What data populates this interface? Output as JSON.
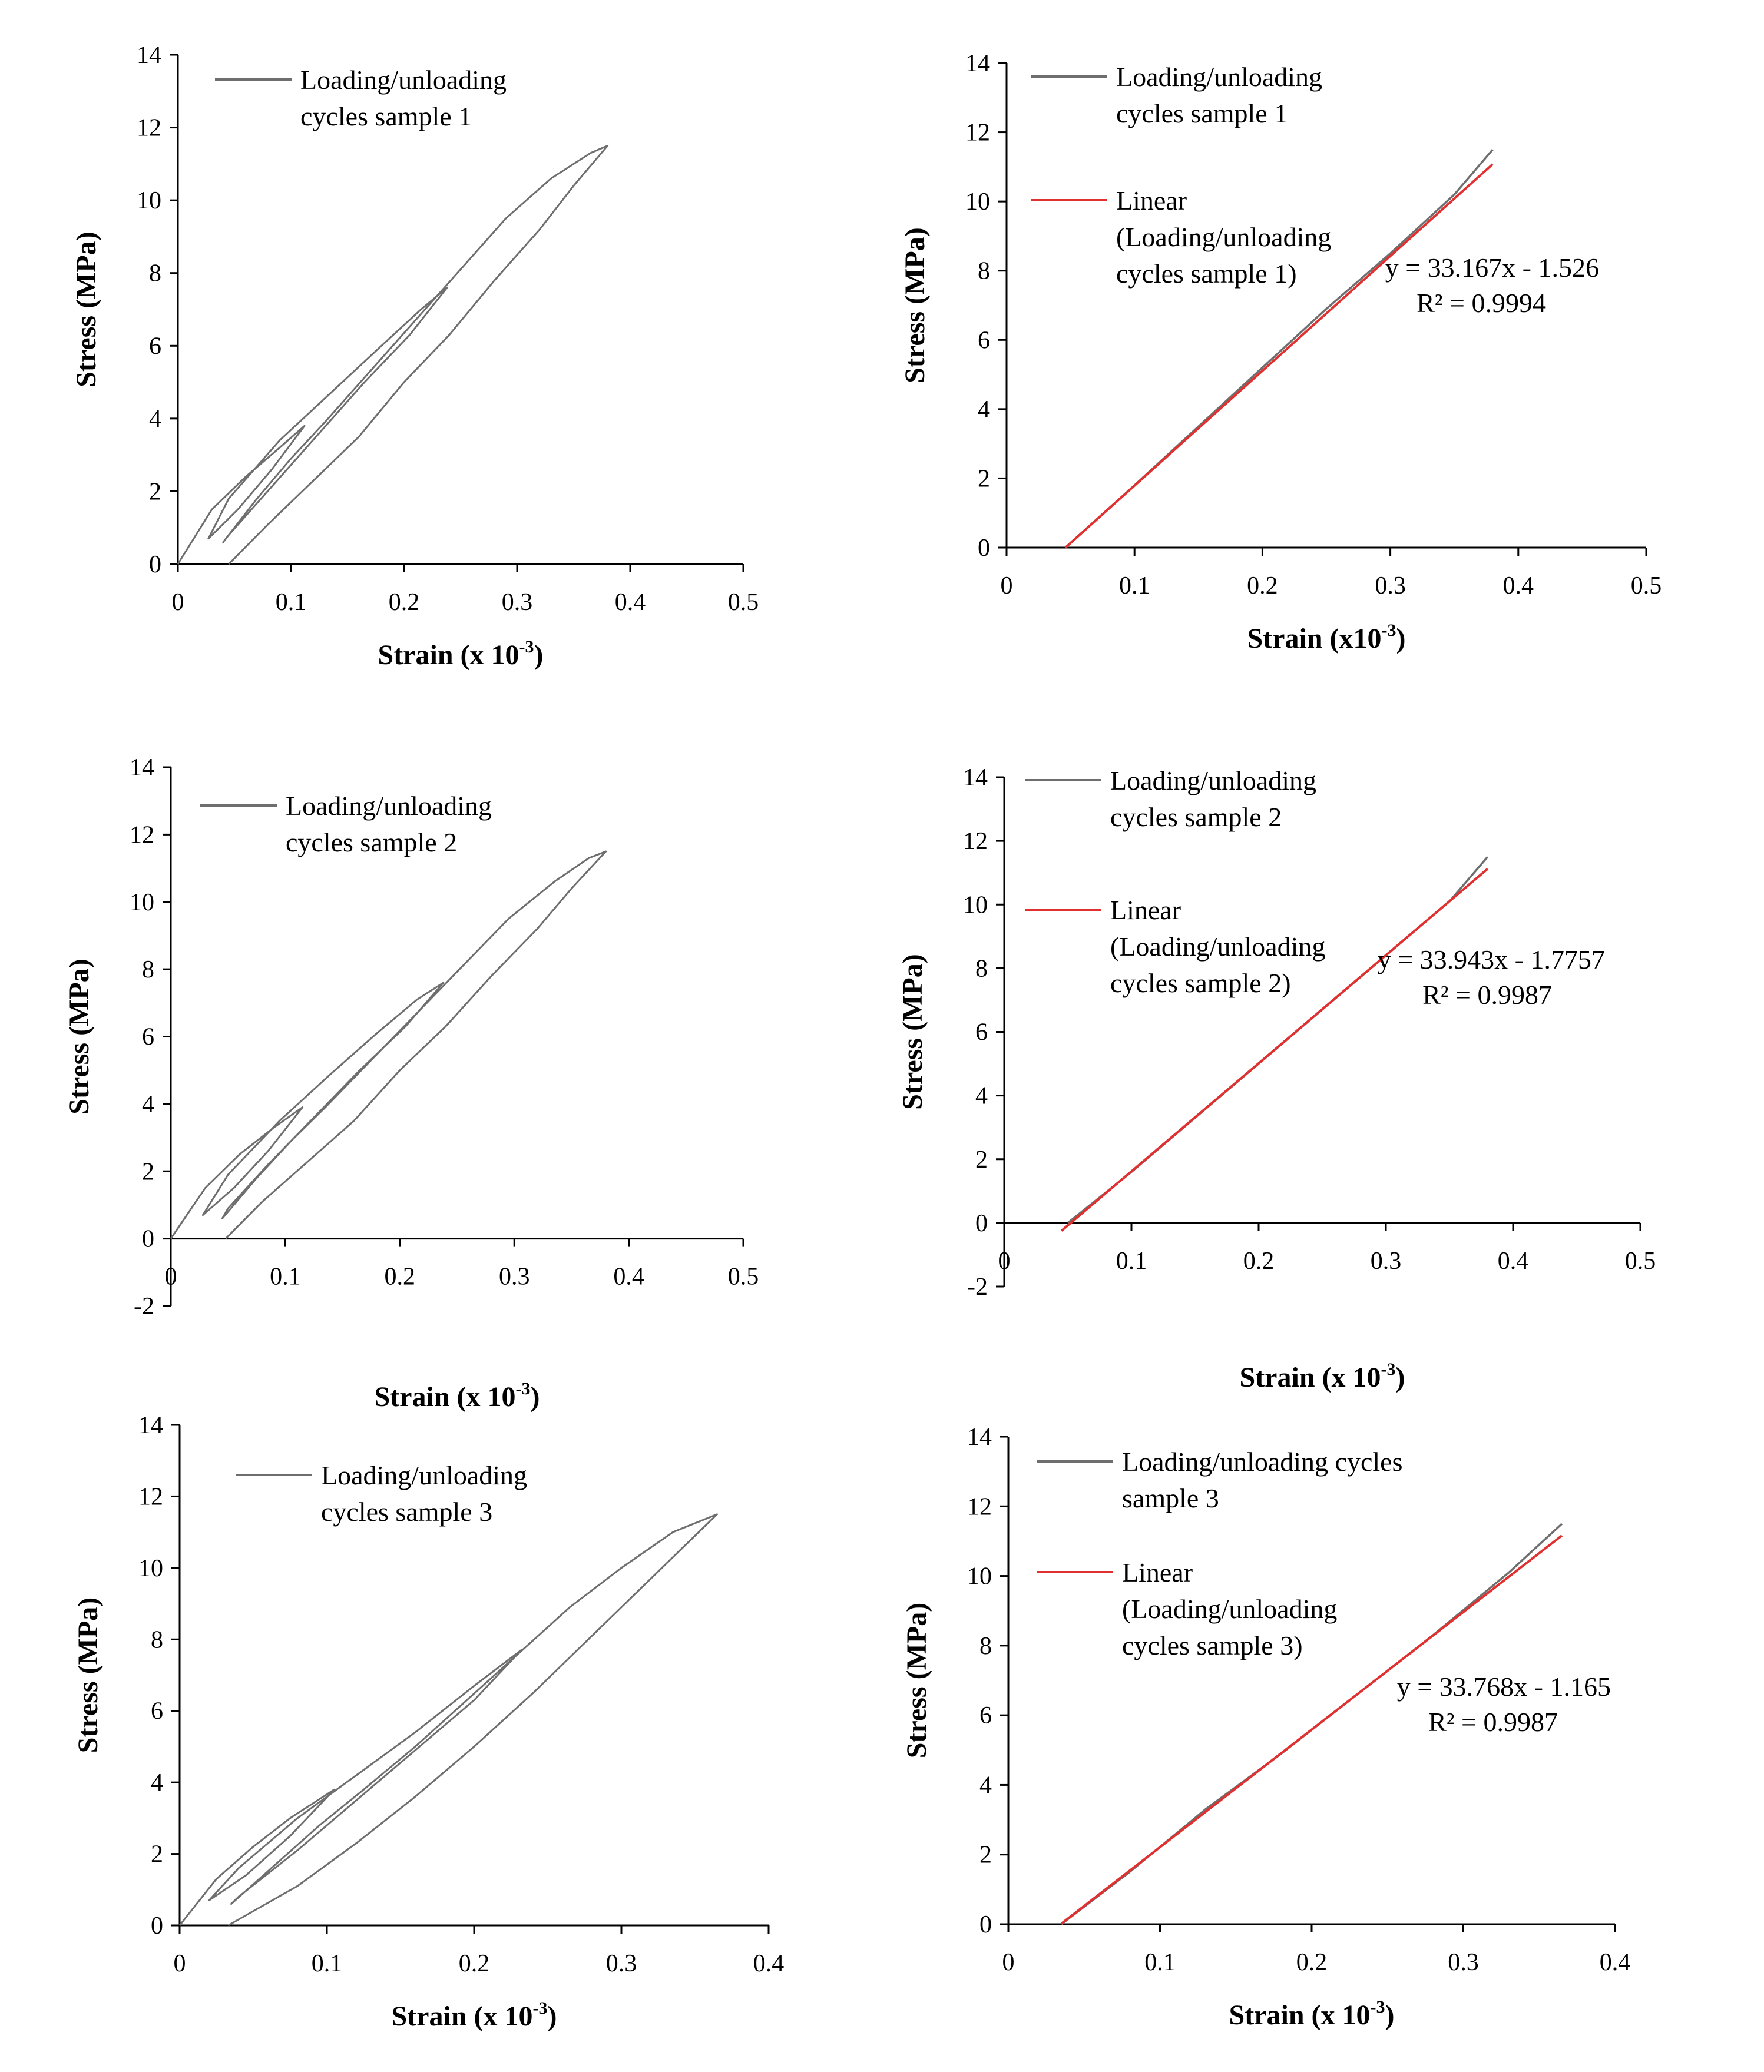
{
  "figure": {
    "panel_count": 6
  },
  "colors": {
    "data_line": "#6e6e6e",
    "fit_line": "#e03030",
    "axis": "#000000"
  },
  "chart_data": [
    {
      "id": "p1",
      "type": "line",
      "xlabel": "Strain (x 10",
      "xlabel_sup": "-3",
      "xlabel_end": ")",
      "ylabel": "Stress  (MPa)",
      "xlim": [
        0,
        0.5
      ],
      "ylim": [
        0,
        14
      ],
      "xticks": [
        0,
        0.1,
        0.2,
        0.3,
        0.4,
        0.5
      ],
      "yticks": [
        0,
        2,
        4,
        6,
        8,
        10,
        12,
        14
      ],
      "legend": [
        "Loading/unloading",
        "cycles sample 1"
      ],
      "series": [
        {
          "name": "Loading/unloading cycles sample 1",
          "kind": "cycles",
          "x": [
            0.0,
            0.03,
            0.06,
            0.09,
            0.112,
            0.083,
            0.053,
            0.027,
            0.045,
            0.09,
            0.135,
            0.18,
            0.215,
            0.238,
            0.205,
            0.165,
            0.125,
            0.085,
            0.045,
            0.04,
            0.07,
            0.1,
            0.13,
            0.17,
            0.21,
            0.25,
            0.29,
            0.33,
            0.365,
            0.38,
            0.35,
            0.32,
            0.28,
            0.24,
            0.2,
            0.16,
            0.12,
            0.08,
            0.045
          ],
          "y": [
            0.0,
            1.5,
            2.4,
            3.2,
            3.8,
            2.6,
            1.5,
            0.7,
            1.8,
            3.4,
            4.7,
            6.0,
            7.0,
            7.6,
            6.3,
            5.0,
            3.6,
            2.2,
            0.8,
            0.6,
            1.8,
            2.9,
            3.9,
            5.3,
            6.7,
            8.1,
            9.5,
            10.6,
            11.3,
            11.5,
            10.4,
            9.2,
            7.8,
            6.3,
            5.0,
            3.5,
            2.3,
            1.1,
            0.0
          ]
        }
      ]
    },
    {
      "id": "p2",
      "type": "line",
      "xlabel": "Strain (x10",
      "xlabel_sup": "-3",
      "xlabel_end": ")",
      "ylabel": "Stress  (MPa)",
      "xlim": [
        0,
        0.5
      ],
      "ylim": [
        0,
        14
      ],
      "xticks": [
        0,
        0.1,
        0.2,
        0.3,
        0.4,
        0.5
      ],
      "yticks": [
        0,
        2,
        4,
        6,
        8,
        10,
        12,
        14
      ],
      "legend": [
        "Loading/unloading",
        "cycles sample 1"
      ],
      "legend_fit": [
        "Linear",
        "(Loading/unloading",
        "cycles sample 1)"
      ],
      "equation": "y = 33.167x - 1.526",
      "r2": "R² = 0.9994",
      "series": [
        {
          "name": "Loading/unloading cycles sample 1",
          "kind": "data",
          "x": [
            0.046,
            0.1,
            0.15,
            0.2,
            0.25,
            0.3,
            0.35,
            0.38
          ],
          "y": [
            0.0,
            1.8,
            3.5,
            5.2,
            6.9,
            8.5,
            10.2,
            11.5
          ]
        },
        {
          "name": "Linear (Loading/unloading cycles sample 1)",
          "kind": "fit",
          "slope": 33.167,
          "intercept": -1.526,
          "x_range": [
            0.046,
            0.38
          ]
        }
      ]
    },
    {
      "id": "p3",
      "type": "line",
      "xlabel": "Strain (x 10",
      "xlabel_sup": "-3",
      "xlabel_end": ")",
      "ylabel": "Stress (MPa)",
      "xlim": [
        0,
        0.5
      ],
      "ylim": [
        -2,
        14
      ],
      "xticks": [
        0,
        0.1,
        0.2,
        0.3,
        0.4,
        0.5
      ],
      "yticks": [
        -2,
        0,
        2,
        4,
        6,
        8,
        10,
        12,
        14
      ],
      "legend": [
        "Loading/unloading",
        "cycles sample 2"
      ],
      "series": [
        {
          "name": "Loading/unloading cycles sample 2",
          "kind": "cycles",
          "x": [
            0.0,
            0.03,
            0.06,
            0.09,
            0.115,
            0.085,
            0.055,
            0.028,
            0.05,
            0.095,
            0.14,
            0.18,
            0.215,
            0.238,
            0.205,
            0.165,
            0.125,
            0.085,
            0.05,
            0.045,
            0.075,
            0.105,
            0.135,
            0.175,
            0.215,
            0.255,
            0.295,
            0.335,
            0.365,
            0.38,
            0.35,
            0.32,
            0.28,
            0.24,
            0.2,
            0.16,
            0.12,
            0.08,
            0.048
          ],
          "y": [
            0.0,
            1.5,
            2.5,
            3.3,
            3.9,
            2.6,
            1.5,
            0.7,
            1.9,
            3.5,
            4.9,
            6.1,
            7.1,
            7.6,
            6.3,
            5.0,
            3.6,
            2.2,
            0.9,
            0.6,
            1.8,
            2.9,
            3.9,
            5.3,
            6.7,
            8.1,
            9.5,
            10.6,
            11.3,
            11.5,
            10.4,
            9.2,
            7.8,
            6.3,
            5.0,
            3.5,
            2.3,
            1.1,
            0.0
          ]
        }
      ]
    },
    {
      "id": "p4",
      "type": "line",
      "xlabel": "Strain (x 10",
      "xlabel_sup": "-3",
      "xlabel_end": ")",
      "ylabel": "Stress  (MPa)",
      "xlim": [
        0,
        0.5
      ],
      "ylim": [
        -2,
        14
      ],
      "xticks": [
        0,
        0.1,
        0.2,
        0.3,
        0.4,
        0.5
      ],
      "yticks": [
        -2,
        0,
        2,
        4,
        6,
        8,
        10,
        12,
        14
      ],
      "legend": [
        "Loading/unloading",
        "cycles sample 2"
      ],
      "legend_fit": [
        "Linear",
        "(Loading/unloading",
        "cycles sample 2)"
      ],
      "equation": "y = 33.943x - 1.7757",
      "r2": "R² = 0.9987",
      "series": [
        {
          "name": "Loading/unloading cycles sample 2",
          "kind": "data",
          "x": [
            0.05,
            0.1,
            0.15,
            0.2,
            0.25,
            0.3,
            0.35,
            0.38
          ],
          "y": [
            0.0,
            1.6,
            3.3,
            5.0,
            6.7,
            8.4,
            10.1,
            11.5
          ]
        },
        {
          "name": "Linear (Loading/unloading cycles sample 2)",
          "kind": "fit",
          "slope": 33.943,
          "intercept": -1.7757,
          "x_range": [
            0.045,
            0.38
          ]
        }
      ]
    },
    {
      "id": "p5",
      "type": "line",
      "xlabel": "Strain (x 10",
      "xlabel_sup": "-3",
      "xlabel_end": ")",
      "ylabel": "Stress (MPa)",
      "xlim": [
        0,
        0.4
      ],
      "ylim": [
        0,
        14
      ],
      "xticks": [
        0,
        0.1,
        0.2,
        0.3,
        0.4
      ],
      "yticks": [
        0,
        2,
        4,
        6,
        8,
        10,
        12,
        14
      ],
      "legend": [
        "Loading/unloading",
        "cycles sample 3"
      ],
      "series": [
        {
          "name": "Loading/unloading cycles sample 3",
          "kind": "cycles",
          "x": [
            0.0,
            0.025,
            0.05,
            0.075,
            0.105,
            0.075,
            0.045,
            0.02,
            0.04,
            0.08,
            0.12,
            0.16,
            0.2,
            0.232,
            0.2,
            0.16,
            0.12,
            0.08,
            0.04,
            0.035,
            0.065,
            0.095,
            0.125,
            0.16,
            0.195,
            0.23,
            0.265,
            0.3,
            0.335,
            0.365,
            0.34,
            0.31,
            0.275,
            0.24,
            0.2,
            0.16,
            0.12,
            0.08,
            0.033
          ],
          "y": [
            0.0,
            1.3,
            2.2,
            3.0,
            3.8,
            2.5,
            1.4,
            0.7,
            1.6,
            3.0,
            4.2,
            5.4,
            6.7,
            7.7,
            6.3,
            4.9,
            3.5,
            2.1,
            0.8,
            0.6,
            1.7,
            2.8,
            3.8,
            5.0,
            6.3,
            7.6,
            8.9,
            10.0,
            11.0,
            11.5,
            10.5,
            9.3,
            7.9,
            6.5,
            5.0,
            3.6,
            2.3,
            1.1,
            0.0
          ]
        }
      ]
    },
    {
      "id": "p6",
      "type": "line",
      "xlabel": "Strain (x 10",
      "xlabel_sup": "-3",
      "xlabel_end": ")",
      "ylabel": "Stress  (MPa)",
      "xlim": [
        0,
        0.4
      ],
      "ylim": [
        0,
        14
      ],
      "xticks": [
        0,
        0.1,
        0.2,
        0.3,
        0.4
      ],
      "yticks": [
        0,
        2,
        4,
        6,
        8,
        10,
        12,
        14
      ],
      "legend": [
        "Loading/unloading cycles",
        "sample 3"
      ],
      "legend_fit": [
        "Linear",
        "(Loading/unloading",
        "cycles sample 3)"
      ],
      "equation": "y = 33.768x - 1.165",
      "r2": "R² = 0.9987",
      "series": [
        {
          "name": "Loading/unloading cycles sample 3",
          "kind": "data",
          "x": [
            0.035,
            0.08,
            0.13,
            0.18,
            0.23,
            0.28,
            0.33,
            0.365
          ],
          "y": [
            0.0,
            1.5,
            3.3,
            4.9,
            6.6,
            8.3,
            10.1,
            11.5
          ]
        },
        {
          "name": "Linear (Loading/unloading cycles sample 3)",
          "kind": "fit",
          "slope": 33.768,
          "intercept": -1.165,
          "x_range": [
            0.035,
            0.365
          ]
        }
      ]
    }
  ]
}
